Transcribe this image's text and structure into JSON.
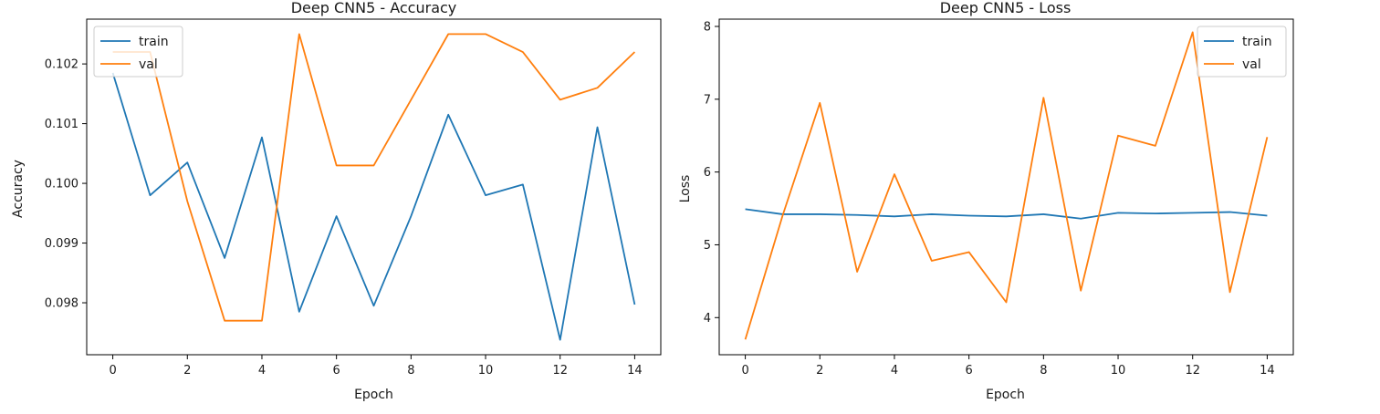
{
  "colors": {
    "train": "#1f77b4",
    "val": "#ff7f0e"
  },
  "chart_data": [
    {
      "type": "line",
      "title": "Deep CNN5 - Accuracy",
      "xlabel": "Epoch",
      "ylabel": "Accuracy",
      "x": [
        0,
        1,
        2,
        3,
        4,
        5,
        6,
        7,
        8,
        9,
        10,
        11,
        12,
        13,
        14
      ],
      "xlim": [
        -0.7,
        14.7
      ],
      "ylim": [
        0.09713,
        0.10275
      ],
      "xticks": [
        0,
        2,
        4,
        6,
        8,
        10,
        12,
        14
      ],
      "yticks": [
        0.098,
        0.099,
        0.1,
        0.101,
        0.102
      ],
      "ytick_labels": [
        "0.098",
        "0.099",
        "0.100",
        "0.101",
        "0.102"
      ],
      "legend": "upper left",
      "series": [
        {
          "name": "train",
          "color": "#1f77b4",
          "values": [
            0.10185,
            0.0998,
            0.10035,
            0.09875,
            0.10077,
            0.09785,
            0.09945,
            0.09795,
            0.09945,
            0.10115,
            0.0998,
            0.09998,
            0.09738,
            0.10094,
            0.09797
          ]
        },
        {
          "name": "val",
          "color": "#ff7f0e",
          "values": [
            0.1022,
            0.1022,
            0.0997,
            0.0977,
            0.0977,
            0.1025,
            0.1003,
            0.1003,
            0.1014,
            0.1025,
            0.1025,
            0.1022,
            0.1014,
            0.1016,
            0.1022
          ]
        }
      ]
    },
    {
      "type": "line",
      "title": "Deep CNN5 - Loss",
      "xlabel": "Epoch",
      "ylabel": "Loss",
      "x": [
        0,
        1,
        2,
        3,
        4,
        5,
        6,
        7,
        8,
        9,
        10,
        11,
        12,
        13,
        14
      ],
      "xlim": [
        -0.7,
        14.7
      ],
      "ylim": [
        3.49,
        8.1
      ],
      "xticks": [
        0,
        2,
        4,
        6,
        8,
        10,
        12,
        14
      ],
      "yticks": [
        4,
        5,
        6,
        7,
        8
      ],
      "ytick_labels": [
        "4",
        "5",
        "6",
        "7",
        "8"
      ],
      "legend": "upper right",
      "series": [
        {
          "name": "train",
          "color": "#1f77b4",
          "values": [
            5.49,
            5.42,
            5.42,
            5.41,
            5.39,
            5.42,
            5.4,
            5.39,
            5.42,
            5.36,
            5.44,
            5.43,
            5.44,
            5.45,
            5.4
          ]
        },
        {
          "name": "val",
          "color": "#ff7f0e",
          "values": [
            3.7,
            5.4,
            6.95,
            4.63,
            5.97,
            4.78,
            4.9,
            4.21,
            7.02,
            4.37,
            6.5,
            6.36,
            7.92,
            4.35,
            6.48
          ]
        }
      ]
    }
  ]
}
